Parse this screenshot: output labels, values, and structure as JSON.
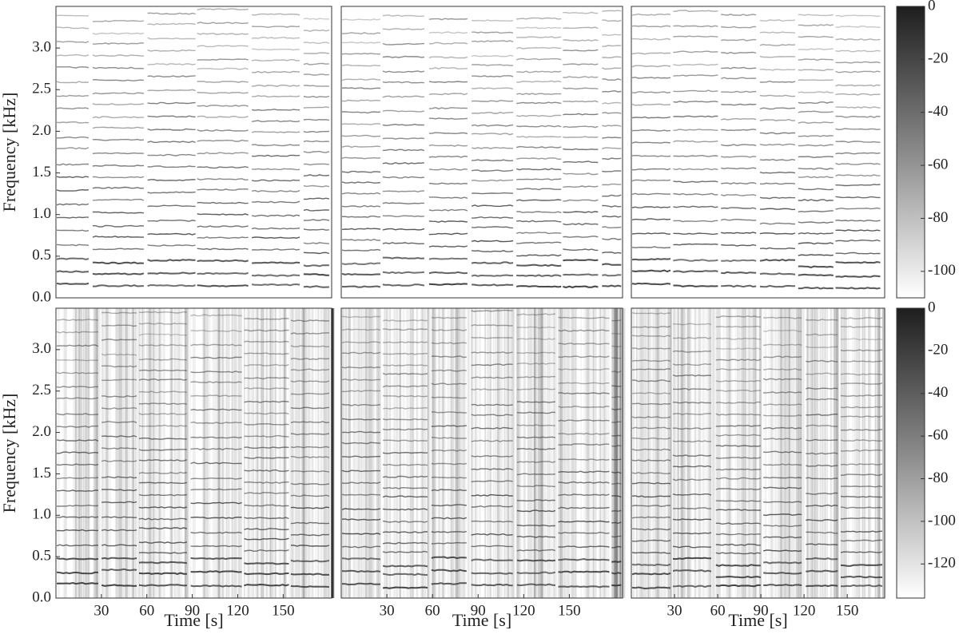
{
  "chart_data": [
    {
      "type": "spectrogram",
      "ylabel": "Frequency [kHz]",
      "xlim": [
        0,
        182
      ],
      "ylim": [
        0,
        3.5
      ],
      "yticks": [
        {
          "value": 0,
          "label": "0.0"
        },
        0.5,
        {
          "value": 1,
          "label": "1.0"
        },
        1.5,
        {
          "value": 2,
          "label": "2.0"
        },
        2.5,
        {
          "value": 3,
          "label": "3.0"
        }
      ]
    },
    {
      "type": "spectrogram",
      "xlim": [
        0,
        185
      ],
      "ylim": [
        0,
        3.5
      ]
    },
    {
      "type": "spectrogram",
      "xlim": [
        0,
        176
      ],
      "ylim": [
        0,
        3.5
      ]
    },
    {
      "type": "colorbar",
      "lim": [
        -110,
        0
      ],
      "ticks": [
        0,
        -20,
        -40,
        -60,
        -80,
        -100
      ]
    },
    {
      "type": "spectrogram",
      "ylabel": "Frequency [kHz]",
      "xlabel": "Time [s]",
      "xlim": [
        0,
        182
      ],
      "ylim": [
        0,
        3.5
      ],
      "xticks": [
        30,
        60,
        90,
        120,
        150
      ],
      "yticks": [
        {
          "value": 0,
          "label": "0.0"
        },
        0.5,
        {
          "value": 1,
          "label": "1.0"
        },
        1.5,
        {
          "value": 2,
          "label": "2.0"
        },
        2.5,
        {
          "value": 3,
          "label": "3.0"
        }
      ]
    },
    {
      "type": "spectrogram",
      "xlabel": "Time [s]",
      "xlim": [
        0,
        185
      ],
      "ylim": [
        0,
        3.5
      ],
      "xticks": [
        30,
        60,
        90,
        120,
        150
      ]
    },
    {
      "type": "spectrogram",
      "xlabel": "Time [s]",
      "xlim": [
        0,
        176
      ],
      "ylim": [
        0,
        3.5
      ],
      "xticks": [
        30,
        60,
        90,
        120,
        150
      ]
    },
    {
      "type": "colorbar",
      "lim": [
        -136,
        0
      ],
      "ticks": [
        0,
        -20,
        -40,
        -60,
        -80,
        -100,
        -120
      ]
    }
  ]
}
